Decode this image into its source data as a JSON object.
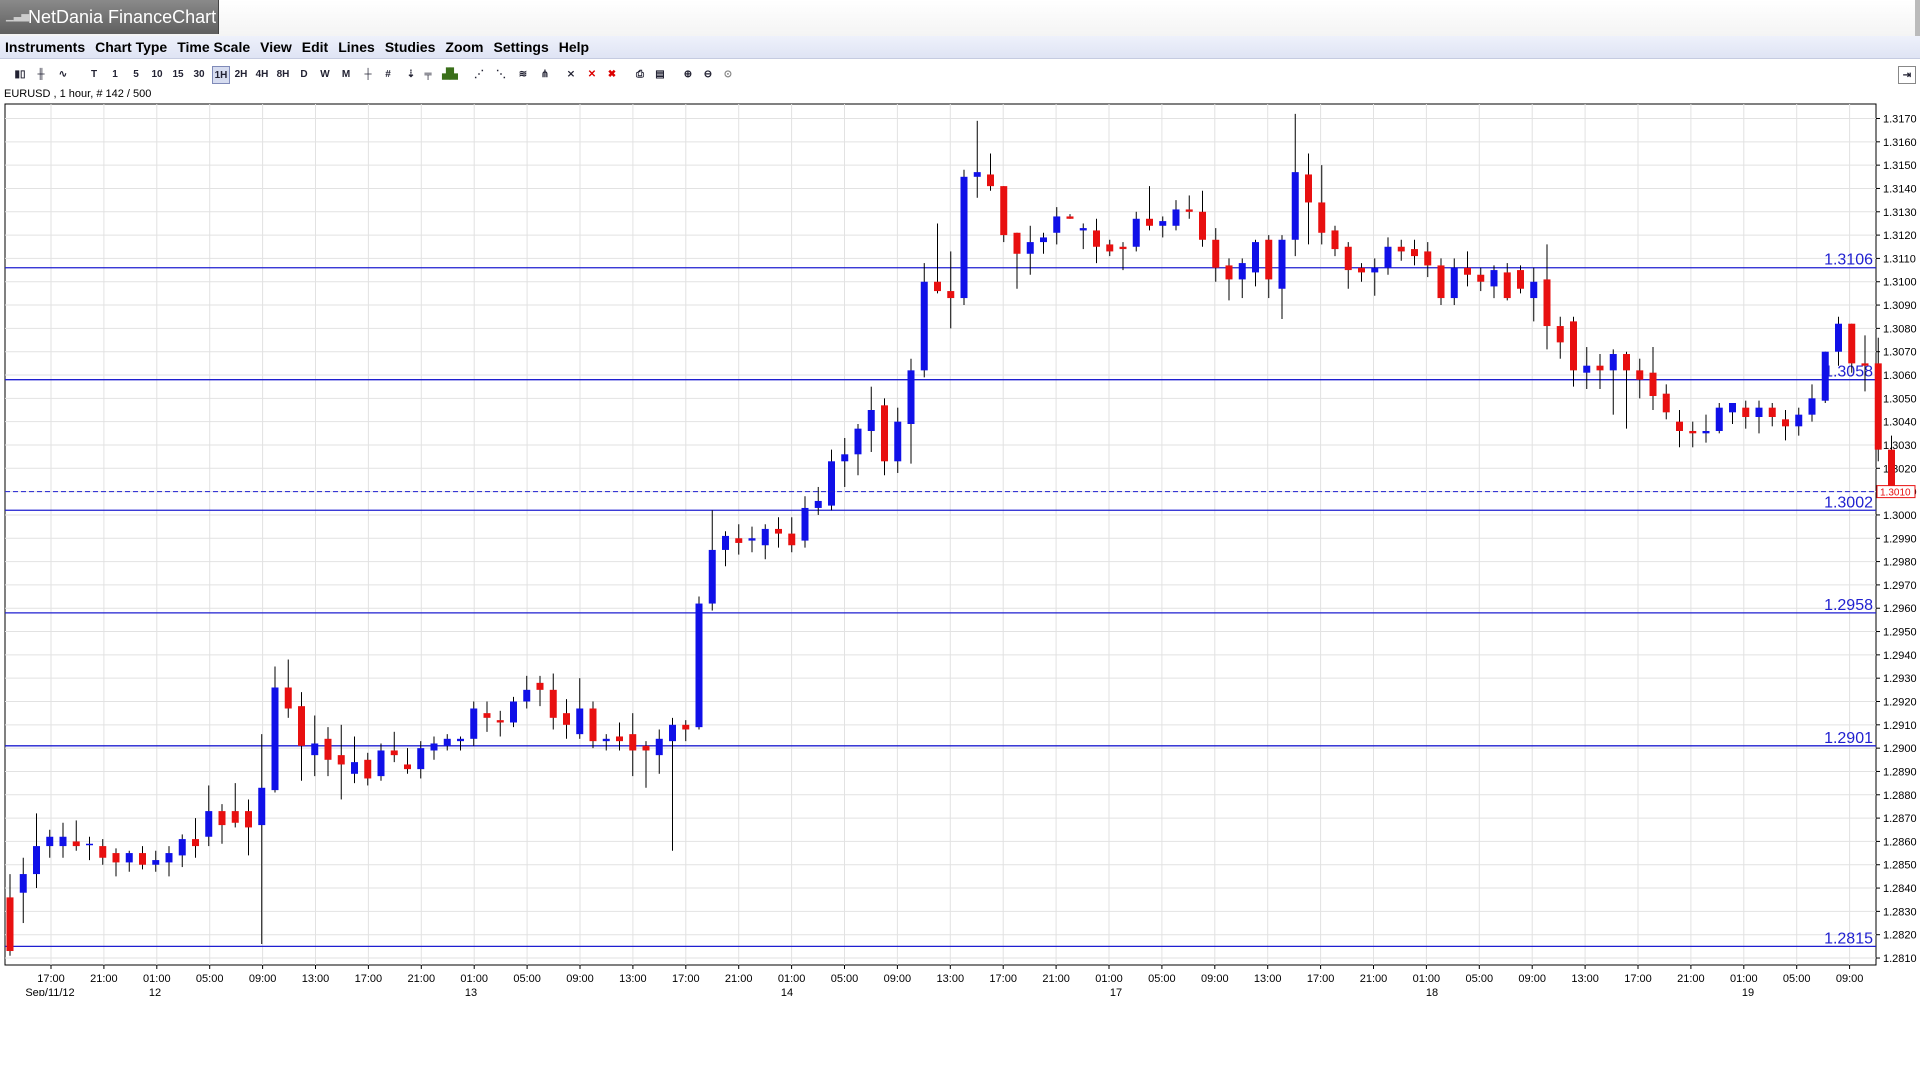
{
  "window": {
    "title": "NetDania FinanceChart",
    "app_icon": "chart-icon"
  },
  "menu": [
    "Instruments",
    "Chart Type",
    "Time Scale",
    "View",
    "Edit",
    "Lines",
    "Studies",
    "Zoom",
    "Settings",
    "Help"
  ],
  "toolbar": {
    "timeframes": [
      "T",
      "1",
      "5",
      "10",
      "15",
      "30",
      "1H",
      "2H",
      "4H",
      "8H",
      "D",
      "W",
      "M"
    ],
    "selected_timeframe": "1H",
    "tools": [
      "crosshair-icon",
      "grid-icon",
      "line-tools-icon",
      "print-icon",
      "zoom-in-icon",
      "zoom-out-icon"
    ]
  },
  "instrument_label": "EURUSD , 1 hour, # 142 / 500",
  "chart_data": {
    "type": "candlestick",
    "ylim": [
      1.2805,
      1.3177
    ],
    "y_ticks": [
      "1.3170",
      "1.3160",
      "1.3150",
      "1.3140",
      "1.3130",
      "1.3120",
      "1.3110",
      "1.3100",
      "1.3090",
      "1.3080",
      "1.3070",
      "1.3060",
      "1.3050",
      "1.3040",
      "1.3030",
      "1.3020",
      "1.3010",
      "1.3000",
      "1.2990",
      "1.2980",
      "1.2970",
      "1.2960",
      "1.2950",
      "1.2940",
      "1.2930",
      "1.2920",
      "1.2910",
      "1.2900",
      "1.2890",
      "1.2880",
      "1.2870",
      "1.2860",
      "1.2850",
      "1.2840",
      "1.2830",
      "1.2820",
      "1.2810"
    ],
    "x_ticks": [
      "17:00",
      "21:00",
      "01:00",
      "05:00",
      "09:00",
      "13:00",
      "17:00",
      "21:00",
      "01:00",
      "05:00",
      "09:00",
      "13:00",
      "17:00",
      "21:00",
      "01:00",
      "05:00",
      "09:00",
      "13:00",
      "17:00",
      "21:00",
      "01:00",
      "05:00",
      "09:00",
      "13:00",
      "17:00",
      "21:00",
      "01:00",
      "05:00",
      "09:00",
      "13:00",
      "17:00",
      "21:00",
      "01:00",
      "05:00",
      "09:00"
    ],
    "date_labels": [
      "Sep/11/12",
      "12",
      "13",
      "14",
      "17",
      "18",
      "19"
    ],
    "horizontal_lines": [
      {
        "label": "1.3106",
        "value": 1.3106
      },
      {
        "label": "1.3058",
        "value": 1.3058
      },
      {
        "label": "1.3002",
        "value": 1.3002
      },
      {
        "label": "1.2958",
        "value": 1.2958
      },
      {
        "label": "1.2901",
        "value": 1.2901
      },
      {
        "label": "1.2815",
        "value": 1.2815
      }
    ],
    "current_price": {
      "label": "1.3010",
      "value": 1.301
    },
    "candles": [
      {
        "o": 1.2836,
        "h": 1.2846,
        "l": 1.2811,
        "c": 1.2813
      },
      {
        "o": 1.2838,
        "h": 1.2853,
        "l": 1.2825,
        "c": 1.2846
      },
      {
        "o": 1.2846,
        "h": 1.2872,
        "l": 1.284,
        "c": 1.2858
      },
      {
        "o": 1.2858,
        "h": 1.2865,
        "l": 1.2853,
        "c": 1.2862
      },
      {
        "o": 1.2858,
        "h": 1.2868,
        "l": 1.2853,
        "c": 1.2862
      },
      {
        "o": 1.286,
        "h": 1.2869,
        "l": 1.2856,
        "c": 1.2858
      },
      {
        "o": 1.2859,
        "h": 1.2862,
        "l": 1.2852,
        "c": 1.2859
      },
      {
        "o": 1.2858,
        "h": 1.2861,
        "l": 1.285,
        "c": 1.2853
      },
      {
        "o": 1.2855,
        "h": 1.2857,
        "l": 1.2845,
        "c": 1.2851
      },
      {
        "o": 1.2851,
        "h": 1.2856,
        "l": 1.2847,
        "c": 1.2855
      },
      {
        "o": 1.2855,
        "h": 1.2858,
        "l": 1.2848,
        "c": 1.285
      },
      {
        "o": 1.285,
        "h": 1.2856,
        "l": 1.2847,
        "c": 1.2852
      },
      {
        "o": 1.2851,
        "h": 1.2858,
        "l": 1.2845,
        "c": 1.2855
      },
      {
        "o": 1.2854,
        "h": 1.2863,
        "l": 1.2849,
        "c": 1.2861
      },
      {
        "o": 1.2861,
        "h": 1.287,
        "l": 1.2853,
        "c": 1.2858
      },
      {
        "o": 1.2862,
        "h": 1.2884,
        "l": 1.2858,
        "c": 1.2873
      },
      {
        "o": 1.2873,
        "h": 1.2876,
        "l": 1.2859,
        "c": 1.2867
      },
      {
        "o": 1.2873,
        "h": 1.2885,
        "l": 1.2866,
        "c": 1.2868
      },
      {
        "o": 1.2873,
        "h": 1.2878,
        "l": 1.2854,
        "c": 1.2866
      },
      {
        "o": 1.2867,
        "h": 1.2906,
        "l": 1.2816,
        "c": 1.2883
      },
      {
        "o": 1.2882,
        "h": 1.2935,
        "l": 1.2881,
        "c": 1.2926
      },
      {
        "o": 1.2926,
        "h": 1.2938,
        "l": 1.2913,
        "c": 1.2917
      },
      {
        "o": 1.2918,
        "h": 1.2924,
        "l": 1.2886,
        "c": 1.2901
      },
      {
        "o": 1.2897,
        "h": 1.2914,
        "l": 1.2888,
        "c": 1.2902
      },
      {
        "o": 1.2904,
        "h": 1.2909,
        "l": 1.2888,
        "c": 1.2895
      },
      {
        "o": 1.2897,
        "h": 1.291,
        "l": 1.2878,
        "c": 1.2893
      },
      {
        "o": 1.2889,
        "h": 1.2905,
        "l": 1.2885,
        "c": 1.2894
      },
      {
        "o": 1.2895,
        "h": 1.2898,
        "l": 1.2884,
        "c": 1.2887
      },
      {
        "o": 1.2888,
        "h": 1.2902,
        "l": 1.2886,
        "c": 1.2899
      },
      {
        "o": 1.2899,
        "h": 1.2907,
        "l": 1.2894,
        "c": 1.2897
      },
      {
        "o": 1.2893,
        "h": 1.29,
        "l": 1.2889,
        "c": 1.2891
      },
      {
        "o": 1.2891,
        "h": 1.2903,
        "l": 1.2887,
        "c": 1.29
      },
      {
        "o": 1.2899,
        "h": 1.2905,
        "l": 1.2895,
        "c": 1.2902
      },
      {
        "o": 1.2901,
        "h": 1.2906,
        "l": 1.2899,
        "c": 1.2904
      },
      {
        "o": 1.2903,
        "h": 1.2905,
        "l": 1.2899,
        "c": 1.2904
      },
      {
        "o": 1.2904,
        "h": 1.292,
        "l": 1.2901,
        "c": 1.2917
      },
      {
        "o": 1.2915,
        "h": 1.292,
        "l": 1.2907,
        "c": 1.2913
      },
      {
        "o": 1.2912,
        "h": 1.2916,
        "l": 1.2905,
        "c": 1.2911
      },
      {
        "o": 1.2911,
        "h": 1.2922,
        "l": 1.2909,
        "c": 1.292
      },
      {
        "o": 1.292,
        "h": 1.2931,
        "l": 1.2917,
        "c": 1.2925
      },
      {
        "o": 1.2928,
        "h": 1.2931,
        "l": 1.2918,
        "c": 1.2925
      },
      {
        "o": 1.2925,
        "h": 1.2932,
        "l": 1.2908,
        "c": 1.2913
      },
      {
        "o": 1.2915,
        "h": 1.2921,
        "l": 1.2904,
        "c": 1.291
      },
      {
        "o": 1.2906,
        "h": 1.293,
        "l": 1.2904,
        "c": 1.2917
      },
      {
        "o": 1.2917,
        "h": 1.292,
        "l": 1.29,
        "c": 1.2903
      },
      {
        "o": 1.2903,
        "h": 1.2906,
        "l": 1.2899,
        "c": 1.2904
      },
      {
        "o": 1.2905,
        "h": 1.2911,
        "l": 1.2899,
        "c": 1.2903
      },
      {
        "o": 1.2906,
        "h": 1.2915,
        "l": 1.2888,
        "c": 1.2899
      },
      {
        "o": 1.2901,
        "h": 1.2903,
        "l": 1.2883,
        "c": 1.2899
      },
      {
        "o": 1.2897,
        "h": 1.2908,
        "l": 1.2889,
        "c": 1.2904
      },
      {
        "o": 1.2903,
        "h": 1.2913,
        "l": 1.2856,
        "c": 1.291
      },
      {
        "o": 1.291,
        "h": 1.2912,
        "l": 1.2903,
        "c": 1.2908
      },
      {
        "o": 1.2909,
        "h": 1.2965,
        "l": 1.2908,
        "c": 1.2962
      },
      {
        "o": 1.2962,
        "h": 1.3002,
        "l": 1.2959,
        "c": 1.2985
      },
      {
        "o": 1.2985,
        "h": 1.2993,
        "l": 1.2978,
        "c": 1.2991
      },
      {
        "o": 1.299,
        "h": 1.2996,
        "l": 1.2983,
        "c": 1.2988
      },
      {
        "o": 1.2989,
        "h": 1.2995,
        "l": 1.2984,
        "c": 1.299
      },
      {
        "o": 1.2987,
        "h": 1.2996,
        "l": 1.2981,
        "c": 1.2994
      },
      {
        "o": 1.2994,
        "h": 1.2999,
        "l": 1.2986,
        "c": 1.2992
      },
      {
        "o": 1.2992,
        "h": 1.2999,
        "l": 1.2984,
        "c": 1.2987
      },
      {
        "o": 1.2989,
        "h": 1.3008,
        "l": 1.2986,
        "c": 1.3003
      },
      {
        "o": 1.3003,
        "h": 1.3012,
        "l": 1.3,
        "c": 1.3006
      },
      {
        "o": 1.3004,
        "h": 1.3028,
        "l": 1.3002,
        "c": 1.3023
      },
      {
        "o": 1.3023,
        "h": 1.3033,
        "l": 1.3012,
        "c": 1.3026
      },
      {
        "o": 1.3026,
        "h": 1.3039,
        "l": 1.3017,
        "c": 1.3037
      },
      {
        "o": 1.3036,
        "h": 1.3055,
        "l": 1.3027,
        "c": 1.3045
      },
      {
        "o": 1.3047,
        "h": 1.305,
        "l": 1.3017,
        "c": 1.3023
      },
      {
        "o": 1.3023,
        "h": 1.3046,
        "l": 1.3018,
        "c": 1.304
      },
      {
        "o": 1.3039,
        "h": 1.3067,
        "l": 1.3022,
        "c": 1.3062
      },
      {
        "o": 1.3062,
        "h": 1.3108,
        "l": 1.3059,
        "c": 1.31
      },
      {
        "o": 1.31,
        "h": 1.3125,
        "l": 1.3095,
        "c": 1.3096
      },
      {
        "o": 1.3096,
        "h": 1.3113,
        "l": 1.308,
        "c": 1.3093
      },
      {
        "o": 1.3093,
        "h": 1.3148,
        "l": 1.309,
        "c": 1.3145
      },
      {
        "o": 1.3145,
        "h": 1.3169,
        "l": 1.3136,
        "c": 1.3147
      },
      {
        "o": 1.3146,
        "h": 1.3155,
        "l": 1.3139,
        "c": 1.3141
      },
      {
        "o": 1.3141,
        "h": 1.3141,
        "l": 1.3117,
        "c": 1.312
      },
      {
        "o": 1.3121,
        "h": 1.3121,
        "l": 1.3097,
        "c": 1.3112
      },
      {
        "o": 1.3112,
        "h": 1.3124,
        "l": 1.3103,
        "c": 1.3117
      },
      {
        "o": 1.3117,
        "h": 1.3121,
        "l": 1.3112,
        "c": 1.3119
      },
      {
        "o": 1.3121,
        "h": 1.3132,
        "l": 1.3116,
        "c": 1.3128
      },
      {
        "o": 1.3128,
        "h": 1.3129,
        "l": 1.3127,
        "c": 1.3127
      },
      {
        "o": 1.3122,
        "h": 1.3125,
        "l": 1.3114,
        "c": 1.3123
      },
      {
        "o": 1.3122,
        "h": 1.3127,
        "l": 1.3108,
        "c": 1.3115
      },
      {
        "o": 1.3116,
        "h": 1.3118,
        "l": 1.3111,
        "c": 1.3113
      },
      {
        "o": 1.3115,
        "h": 1.3117,
        "l": 1.3105,
        "c": 1.3114
      },
      {
        "o": 1.3115,
        "h": 1.313,
        "l": 1.3113,
        "c": 1.3127
      },
      {
        "o": 1.3127,
        "h": 1.3141,
        "l": 1.3122,
        "c": 1.3124
      },
      {
        "o": 1.3124,
        "h": 1.3128,
        "l": 1.3119,
        "c": 1.3126
      },
      {
        "o": 1.3124,
        "h": 1.3135,
        "l": 1.3122,
        "c": 1.3131
      },
      {
        "o": 1.3131,
        "h": 1.3137,
        "l": 1.3127,
        "c": 1.313
      },
      {
        "o": 1.313,
        "h": 1.3139,
        "l": 1.3115,
        "c": 1.3118
      },
      {
        "o": 1.3118,
        "h": 1.3123,
        "l": 1.31,
        "c": 1.3106
      },
      {
        "o": 1.3107,
        "h": 1.311,
        "l": 1.3092,
        "c": 1.3101
      },
      {
        "o": 1.3101,
        "h": 1.311,
        "l": 1.3093,
        "c": 1.3108
      },
      {
        "o": 1.3104,
        "h": 1.3118,
        "l": 1.3098,
        "c": 1.3117
      },
      {
        "o": 1.3118,
        "h": 1.312,
        "l": 1.3093,
        "c": 1.3101
      },
      {
        "o": 1.3097,
        "h": 1.312,
        "l": 1.3084,
        "c": 1.3118
      },
      {
        "o": 1.3118,
        "h": 1.3172,
        "l": 1.3111,
        "c": 1.3147
      },
      {
        "o": 1.3146,
        "h": 1.3155,
        "l": 1.3116,
        "c": 1.3134
      },
      {
        "o": 1.3134,
        "h": 1.315,
        "l": 1.3116,
        "c": 1.3121
      },
      {
        "o": 1.3122,
        "h": 1.3124,
        "l": 1.3111,
        "c": 1.3114
      },
      {
        "o": 1.3115,
        "h": 1.3117,
        "l": 1.3097,
        "c": 1.3105
      },
      {
        "o": 1.3106,
        "h": 1.3108,
        "l": 1.31,
        "c": 1.3104
      },
      {
        "o": 1.3104,
        "h": 1.311,
        "l": 1.3094,
        "c": 1.3106
      },
      {
        "o": 1.3106,
        "h": 1.3119,
        "l": 1.3103,
        "c": 1.3115
      },
      {
        "o": 1.3115,
        "h": 1.3118,
        "l": 1.3109,
        "c": 1.3113
      },
      {
        "o": 1.3114,
        "h": 1.3118,
        "l": 1.3107,
        "c": 1.3111
      },
      {
        "o": 1.3113,
        "h": 1.3117,
        "l": 1.3102,
        "c": 1.3107
      },
      {
        "o": 1.3107,
        "h": 1.311,
        "l": 1.309,
        "c": 1.3093
      },
      {
        "o": 1.3093,
        "h": 1.311,
        "l": 1.309,
        "c": 1.3106
      },
      {
        "o": 1.3106,
        "h": 1.3113,
        "l": 1.3098,
        "c": 1.3103
      },
      {
        "o": 1.3103,
        "h": 1.3106,
        "l": 1.3096,
        "c": 1.31
      },
      {
        "o": 1.3098,
        "h": 1.3107,
        "l": 1.3093,
        "c": 1.3105
      },
      {
        "o": 1.3104,
        "h": 1.3108,
        "l": 1.3092,
        "c": 1.3093
      },
      {
        "o": 1.3105,
        "h": 1.3107,
        "l": 1.3095,
        "c": 1.3097
      },
      {
        "o": 1.3093,
        "h": 1.3106,
        "l": 1.3083,
        "c": 1.31
      },
      {
        "o": 1.3101,
        "h": 1.3116,
        "l": 1.3071,
        "c": 1.3081
      },
      {
        "o": 1.3081,
        "h": 1.3085,
        "l": 1.3067,
        "c": 1.3074
      },
      {
        "o": 1.3083,
        "h": 1.3085,
        "l": 1.3055,
        "c": 1.3062
      },
      {
        "o": 1.3061,
        "h": 1.3072,
        "l": 1.3054,
        "c": 1.3064
      },
      {
        "o": 1.3064,
        "h": 1.3069,
        "l": 1.3054,
        "c": 1.3062
      },
      {
        "o": 1.3062,
        "h": 1.3071,
        "l": 1.3043,
        "c": 1.3069
      },
      {
        "o": 1.3069,
        "h": 1.307,
        "l": 1.3037,
        "c": 1.3062
      },
      {
        "o": 1.3062,
        "h": 1.3067,
        "l": 1.305,
        "c": 1.3058
      },
      {
        "o": 1.3061,
        "h": 1.3072,
        "l": 1.3045,
        "c": 1.3051
      },
      {
        "o": 1.3052,
        "h": 1.3056,
        "l": 1.3041,
        "c": 1.3044
      },
      {
        "o": 1.304,
        "h": 1.3045,
        "l": 1.3029,
        "c": 1.3036
      },
      {
        "o": 1.3036,
        "h": 1.304,
        "l": 1.3029,
        "c": 1.3035
      },
      {
        "o": 1.3035,
        "h": 1.3043,
        "l": 1.3031,
        "c": 1.3036
      },
      {
        "o": 1.3036,
        "h": 1.3048,
        "l": 1.3035,
        "c": 1.3046
      },
      {
        "o": 1.3044,
        "h": 1.3048,
        "l": 1.3039,
        "c": 1.3048
      },
      {
        "o": 1.3046,
        "h": 1.3049,
        "l": 1.3037,
        "c": 1.3042
      },
      {
        "o": 1.3042,
        "h": 1.3049,
        "l": 1.3035,
        "c": 1.3046
      },
      {
        "o": 1.3046,
        "h": 1.3048,
        "l": 1.3038,
        "c": 1.3042
      },
      {
        "o": 1.3041,
        "h": 1.3045,
        "l": 1.3032,
        "c": 1.3038
      },
      {
        "o": 1.3038,
        "h": 1.3046,
        "l": 1.3034,
        "c": 1.3043
      },
      {
        "o": 1.3043,
        "h": 1.3056,
        "l": 1.304,
        "c": 1.305
      },
      {
        "o": 1.3049,
        "h": 1.307,
        "l": 1.3048,
        "c": 1.307
      },
      {
        "o": 1.307,
        "h": 1.3085,
        "l": 1.3064,
        "c": 1.3082
      },
      {
        "o": 1.3082,
        "h": 1.3082,
        "l": 1.3061,
        "c": 1.3065
      },
      {
        "o": 1.3065,
        "h": 1.3077,
        "l": 1.3053,
        "c": 1.3064
      },
      {
        "o": 1.3065,
        "h": 1.3076,
        "l": 1.3023,
        "c": 1.3028
      },
      {
        "o": 1.3028,
        "h": 1.3034,
        "l": 1.301,
        "c": 1.301
      }
    ]
  }
}
